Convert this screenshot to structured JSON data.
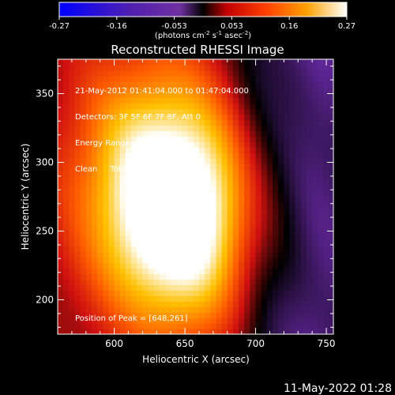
{
  "colorbar": {
    "ticks": [
      "-0.27",
      "-0.16",
      "-0.053",
      "0.053",
      "0.16",
      "0.27"
    ],
    "units_label": "(photons cm",
    "units_exp1": "-2",
    "units_mid": " s",
    "units_exp2": "-1",
    "units_mid2": " asec",
    "units_exp3": "-2",
    "units_end": ")"
  },
  "chart_data": {
    "type": "heatmap",
    "title": "Reconstructed RHESSI Image",
    "xlabel": "Heliocentric X (arcsec)",
    "ylabel": "Heliocentric Y (arcsec)",
    "xlim": [
      560,
      755
    ],
    "ylim": [
      175,
      375
    ],
    "x_ticks": [
      600,
      650,
      700,
      750
    ],
    "y_ticks": [
      200,
      250,
      300,
      350
    ],
    "color_range": [
      -0.27,
      0.27
    ],
    "colormap": [
      "#0a0aff",
      "#3a1f9e",
      "#6a2aa8",
      "#000000",
      "#d01010",
      "#ff6000",
      "#ffc000",
      "#ffffff"
    ],
    "peak": [
      648,
      261
    ],
    "annotations": [
      "21-May-2012 01:41:04.000 to 01:47:04.000",
      "Detectors: 3F 5F 6F 7F 8F, Att 0",
      "Energy Range: 3.0 - 6.0 keV",
      "Clean     Total counts: 4.75E+05"
    ],
    "peak_label": "Position of Peak = [648,261]"
  },
  "footer": {
    "timestamp": "11-May-2022 01:28"
  }
}
